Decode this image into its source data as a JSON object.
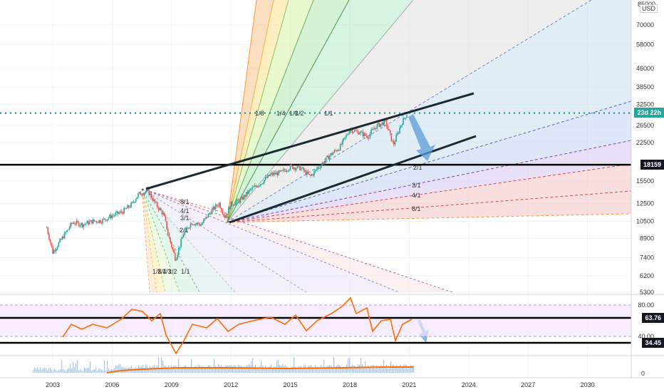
{
  "currency_label": "USD",
  "top_tick": "85000",
  "colors": {
    "accent": "#26a69a",
    "rsi": "#ff6d00",
    "candle_up": "#26a69a",
    "candle_down": "#ef5350"
  },
  "badges": {
    "countdown": "23d 22h",
    "level": "18159",
    "rsi_upper": "63.76",
    "rsi_lower": "34.45"
  },
  "gann_labels": {
    "upper_fan": [
      "1/8",
      "1/4",
      "1/3",
      "1/2",
      "1/1"
    ],
    "lower_fan": [
      "2/1",
      "3/1",
      "4/1",
      "8/1"
    ],
    "crash_fan_top": [
      "8/1",
      "4/1",
      "3/1",
      "2/1"
    ],
    "crash_fan_bottom": [
      "1/8",
      "1/4",
      "1/3",
      "1/2",
      "1/1"
    ]
  },
  "chart_data": {
    "type": "line",
    "price_axis": {
      "scale": "log",
      "ticks": [
        5300,
        6200,
        7400,
        8900,
        10500,
        12500,
        15500,
        18159,
        22500,
        26500,
        32500,
        38500,
        46000,
        58000,
        70000
      ]
    },
    "rsi_axis": {
      "ticks": [
        80.0,
        63.76,
        40.0,
        34.45
      ]
    },
    "x_axis": {
      "ticks": [
        "2003",
        "2006",
        "2009",
        "2012",
        "2015",
        "2018",
        "2021",
        "2024",
        "2027",
        "2030"
      ]
    },
    "levels": {
      "price_horizontal": 18159,
      "current_price_dotted": 29900,
      "rsi_upper": 63.76,
      "rsi_lower": 34.45
    },
    "series": [
      {
        "x": [
          2002.7,
          2003.0,
          2003.5,
          2004.0,
          2004.5,
          2005.0,
          2005.5,
          2006.0,
          2006.5,
          2007.0,
          2007.3,
          2007.8,
          2008.2,
          2008.6,
          2008.9,
          2009.2,
          2009.6,
          2010.0,
          2010.5,
          2011.0,
          2011.4,
          2011.7,
          2012.0,
          2012.5,
          2013.0,
          2013.5,
          2014.0,
          2014.5,
          2015.0,
          2015.5,
          2016.0,
          2016.5,
          2017.0,
          2017.5,
          2018.0,
          2018.5,
          2018.9,
          2019.3,
          2019.8,
          2020.2,
          2020.6,
          2020.9
        ],
        "values": [
          9900,
          7800,
          9000,
          10400,
          10200,
          10500,
          10600,
          11100,
          11500,
          12400,
          13600,
          14100,
          12400,
          11200,
          8800,
          7300,
          9300,
          10400,
          10200,
          11600,
          12500,
          11000,
          12400,
          12900,
          14300,
          15200,
          16500,
          16800,
          17800,
          17600,
          16200,
          18000,
          19900,
          21500,
          25500,
          24800,
          23800,
          26200,
          27500,
          22000,
          27000,
          29900
        ]
      }
    ]
  }
}
